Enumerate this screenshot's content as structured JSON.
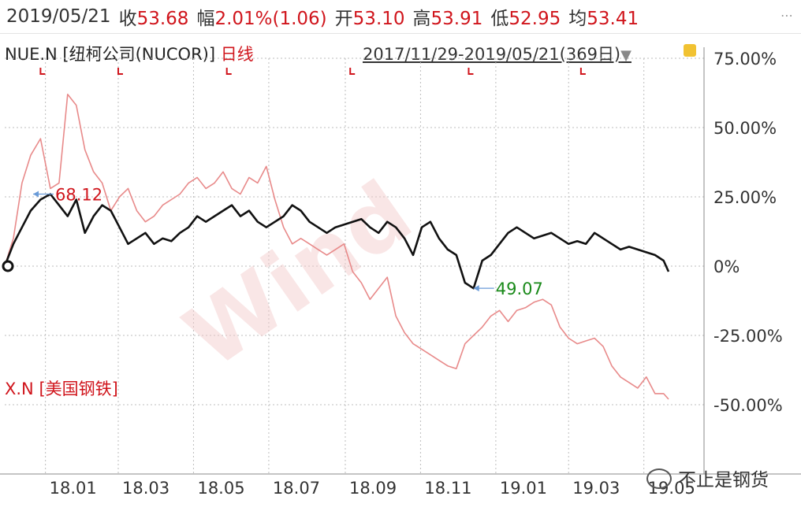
{
  "quote": {
    "date": "2019/05/21",
    "close_label": "收",
    "close": "53.68",
    "change_label": "幅",
    "change": "2.01%(1.06)",
    "open_label": "开",
    "open": "53.10",
    "high_label": "高",
    "high": "53.91",
    "low_label": "低",
    "low": "52.95",
    "avg_label": "均",
    "avg": "53.41"
  },
  "header": {
    "ticker": "NUE.N [纽柯公司(NUCOR)]",
    "period": "日线",
    "range": "2017/11/29-2019/05/21(369日)"
  },
  "watermark": "Wind",
  "footer": {
    "source": "不止是钢货"
  },
  "colors": {
    "primary_series": "#111111",
    "secondary_series": "#e88a8a",
    "axis_label": "#333333",
    "grid": "#bdbdbd",
    "up": "#d0151c",
    "down": "#1a8a1a"
  },
  "chart_data": {
    "type": "line",
    "xlabel": "",
    "ylabel": "",
    "x": [
      "2017-11-29",
      "2017-12-06",
      "2017-12-13",
      "2017-12-20",
      "2017-12-28",
      "2018-01-05",
      "2018-01-12",
      "2018-01-19",
      "2018-01-26",
      "2018-02-02",
      "2018-02-09",
      "2018-02-16",
      "2018-02-23",
      "2018-03-02",
      "2018-03-09",
      "2018-03-16",
      "2018-03-23",
      "2018-03-30",
      "2018-04-06",
      "2018-04-13",
      "2018-04-20",
      "2018-04-27",
      "2018-05-04",
      "2018-05-11",
      "2018-05-18",
      "2018-05-25",
      "2018-06-01",
      "2018-06-08",
      "2018-06-15",
      "2018-06-22",
      "2018-06-29",
      "2018-07-06",
      "2018-07-13",
      "2018-07-20",
      "2018-07-27",
      "2018-08-03",
      "2018-08-10",
      "2018-08-17",
      "2018-08-24",
      "2018-08-31",
      "2018-09-07",
      "2018-09-14",
      "2018-09-21",
      "2018-09-28",
      "2018-10-05",
      "2018-10-12",
      "2018-10-19",
      "2018-10-26",
      "2018-11-02",
      "2018-11-09",
      "2018-11-16",
      "2018-11-23",
      "2018-11-30",
      "2018-12-07",
      "2018-12-14",
      "2018-12-21",
      "2018-12-28",
      "2019-01-04",
      "2019-01-11",
      "2019-01-18",
      "2019-01-25",
      "2019-02-01",
      "2019-02-08",
      "2019-02-15",
      "2019-02-22",
      "2019-03-01",
      "2019-03-08",
      "2019-03-15",
      "2019-03-22",
      "2019-03-29",
      "2019-04-05",
      "2019-04-12",
      "2019-04-19",
      "2019-04-26",
      "2019-05-03",
      "2019-05-10",
      "2019-05-17",
      "2019-05-21"
    ],
    "series": [
      {
        "name": "NUE.N",
        "values": [
          0,
          8,
          14,
          20,
          24,
          26,
          22,
          18,
          24,
          12,
          18,
          22,
          20,
          14,
          8,
          10,
          12,
          8,
          10,
          9,
          12,
          14,
          18,
          16,
          18,
          20,
          22,
          18,
          20,
          16,
          14,
          16,
          18,
          22,
          20,
          16,
          14,
          12,
          14,
          15,
          16,
          17,
          14,
          12,
          16,
          14,
          10,
          4,
          14,
          16,
          10,
          6,
          4,
          -6,
          -8,
          2,
          4,
          8,
          12,
          14,
          12,
          10,
          11,
          12,
          10,
          8,
          9,
          8,
          12,
          10,
          8,
          6,
          7,
          6,
          5,
          4,
          2,
          -2
        ]
      },
      {
        "name": "X.N",
        "values": [
          0,
          10,
          30,
          40,
          46,
          28,
          30,
          62,
          58,
          42,
          34,
          30,
          20,
          25,
          28,
          20,
          16,
          18,
          22,
          24,
          26,
          30,
          32,
          28,
          30,
          34,
          28,
          26,
          32,
          30,
          36,
          24,
          14,
          8,
          10,
          8,
          6,
          4,
          6,
          8,
          -2,
          -6,
          -12,
          -8,
          -4,
          -18,
          -24,
          -28,
          -30,
          -32,
          -34,
          -36,
          -37,
          -28,
          -25,
          -22,
          -18,
          -16,
          -20,
          -16,
          -15,
          -13,
          -12,
          -14,
          -22,
          -26,
          -28,
          -27,
          -26,
          -29,
          -36,
          -40,
          -42,
          -44,
          -40,
          -46,
          -46,
          -48
        ]
      }
    ],
    "annotations": [
      {
        "label": "68.12",
        "x": "2017-12-22",
        "y": 26,
        "series": "NUE.N",
        "kind": "max"
      },
      {
        "label": "49.07",
        "x": "2018-12-14",
        "y": -8,
        "series": "NUE.N",
        "kind": "min"
      }
    ],
    "legend": [
      {
        "label": "NUE.N [纽柯公司(NUCOR)]"
      },
      {
        "label": "X.N [美国钢铁]"
      }
    ],
    "xticks": [
      {
        "label": "18.01",
        "date": "2018-01-01"
      },
      {
        "label": "18.03",
        "date": "2018-03-01"
      },
      {
        "label": "18.05",
        "date": "2018-05-01"
      },
      {
        "label": "18.07",
        "date": "2018-07-01"
      },
      {
        "label": "18.09",
        "date": "2018-09-01"
      },
      {
        "label": "18.11",
        "date": "2018-11-01"
      },
      {
        "label": "19.01",
        "date": "2019-01-01"
      },
      {
        "label": "19.03",
        "date": "2019-03-01"
      },
      {
        "label": "19.05",
        "date": "2019-05-01"
      }
    ],
    "yticks": [
      {
        "label": "75.00%",
        "value": 75
      },
      {
        "label": "50.00%",
        "value": 50
      },
      {
        "label": "25.00%",
        "value": 25
      },
      {
        "label": "0%",
        "value": 0
      },
      {
        "label": "-25.00%",
        "value": -25
      },
      {
        "label": "-50.00%",
        "value": -50
      }
    ],
    "ylim": [
      -75,
      75
    ],
    "grid": true,
    "legend_position": "left"
  }
}
